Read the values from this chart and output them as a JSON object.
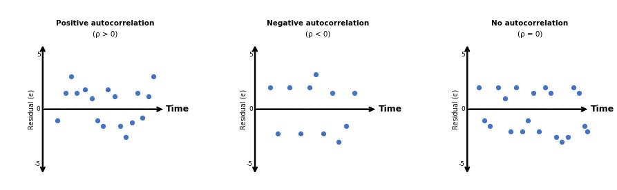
{
  "panels": [
    {
      "title": "Positive autocorrelation",
      "subtitle": "(ρ > 0)",
      "points_x": [
        1.8,
        2.5,
        3.0,
        3.5,
        4.2,
        4.8,
        5.3,
        5.8,
        6.2,
        6.8,
        7.3,
        7.8,
        8.3,
        8.8,
        9.2,
        9.8,
        10.2
      ],
      "points_y": [
        -1.0,
        1.5,
        3.0,
        1.5,
        1.8,
        1.0,
        -1.0,
        -1.5,
        1.8,
        1.2,
        -1.5,
        -2.5,
        -1.2,
        1.5,
        -0.8,
        1.2,
        3.0
      ]
    },
    {
      "title": "Negative autocorrelation",
      "subtitle": "(ρ < 0)",
      "points_x": [
        1.8,
        2.5,
        3.5,
        4.5,
        5.3,
        5.8,
        6.5,
        7.3,
        7.8,
        8.5,
        9.2
      ],
      "points_y": [
        2.0,
        -2.2,
        2.0,
        -2.2,
        2.0,
        3.2,
        -2.2,
        1.5,
        -3.0,
        -1.5,
        1.5
      ]
    },
    {
      "title": "No autocorrelation",
      "subtitle": "(ρ = 0)",
      "points_x": [
        1.5,
        2.0,
        2.5,
        3.2,
        3.8,
        4.3,
        4.8,
        5.3,
        5.8,
        6.3,
        6.8,
        7.3,
        7.8,
        8.3,
        8.8,
        9.3,
        9.8,
        10.3,
        10.8,
        11.0
      ],
      "points_y": [
        2.0,
        -1.0,
        -1.5,
        2.0,
        1.0,
        -2.0,
        2.0,
        -2.0,
        -1.0,
        1.5,
        -2.0,
        2.0,
        1.5,
        -2.5,
        -3.0,
        -2.5,
        2.0,
        1.5,
        -1.5,
        -2.0
      ]
    }
  ],
  "dot_color": "#4472C4",
  "dot_size": 18,
  "ylim": [
    -6.5,
    6.5
  ],
  "ytick_vals": [
    -5,
    0,
    5
  ],
  "ytick_labels": [
    "-5",
    "0",
    "5"
  ],
  "ylabel": "Residual (ϵ)",
  "xlabel": "Time",
  "background_color": "#ffffff",
  "title_fontsize": 7.5,
  "subtitle_fontsize": 7.5,
  "ylabel_fontsize": 7,
  "xlabel_fontsize": 9,
  "xlim": [
    0,
    12
  ],
  "xaxis_end": 11.2,
  "yaxis_top": 6.0,
  "yaxis_bottom": -6.0
}
